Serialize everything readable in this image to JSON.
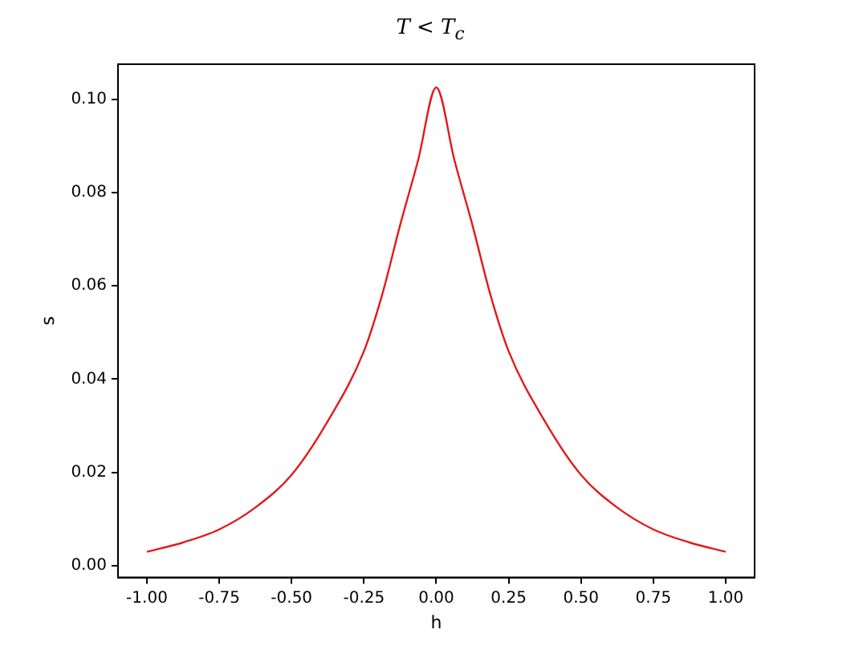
{
  "chart_data": {
    "type": "line",
    "title": "T < T$_{c}$",
    "xlabel": "h",
    "ylabel": "s",
    "x": [
      -1,
      -0.875,
      -0.75,
      -0.625,
      -0.5,
      -0.375,
      -0.25,
      -0.1875,
      -0.125,
      -0.0625,
      0,
      0.0625,
      0.125,
      0.1875,
      0.25,
      0.375,
      0.5,
      0.625,
      0.75,
      0.875,
      1
    ],
    "series": [
      {
        "color": "#e31a1c",
        "values": [
          0.003,
          0.005,
          0.0078,
          0.0125,
          0.0195,
          0.031,
          0.046,
          0.058,
          0.073,
          0.087,
          0.1025,
          0.087,
          0.073,
          0.058,
          0.046,
          0.031,
          0.0195,
          0.0125,
          0.0078,
          0.005,
          0.003
        ]
      }
    ],
    "xlim": [
      -1.1,
      1.1
    ],
    "ylim": [
      -0.0025,
      0.1075
    ],
    "xticks": [
      {
        "value": -1,
        "label": "-1.00"
      },
      {
        "value": -0.75,
        "label": "-0.75"
      },
      {
        "value": -0.5,
        "label": "-0.50"
      },
      {
        "value": -0.25,
        "label": "-0.25"
      },
      {
        "value": 0,
        "label": "0.00"
      },
      {
        "value": 0.25,
        "label": "0.25"
      },
      {
        "value": 0.5,
        "label": "0.50"
      },
      {
        "value": 0.75,
        "label": "0.75"
      },
      {
        "value": 1,
        "label": "1.00"
      }
    ],
    "yticks": [
      {
        "value": 0,
        "label": "0.00"
      },
      {
        "value": 0.02,
        "label": "0.02"
      },
      {
        "value": 0.04,
        "label": "0.04"
      },
      {
        "value": 0.06,
        "label": "0.06"
      },
      {
        "value": 0.08,
        "label": "0.08"
      },
      {
        "value": 0.1,
        "label": "0.10"
      }
    ],
    "grid": false,
    "legend": false,
    "marker": "none",
    "line_style": "solid"
  }
}
